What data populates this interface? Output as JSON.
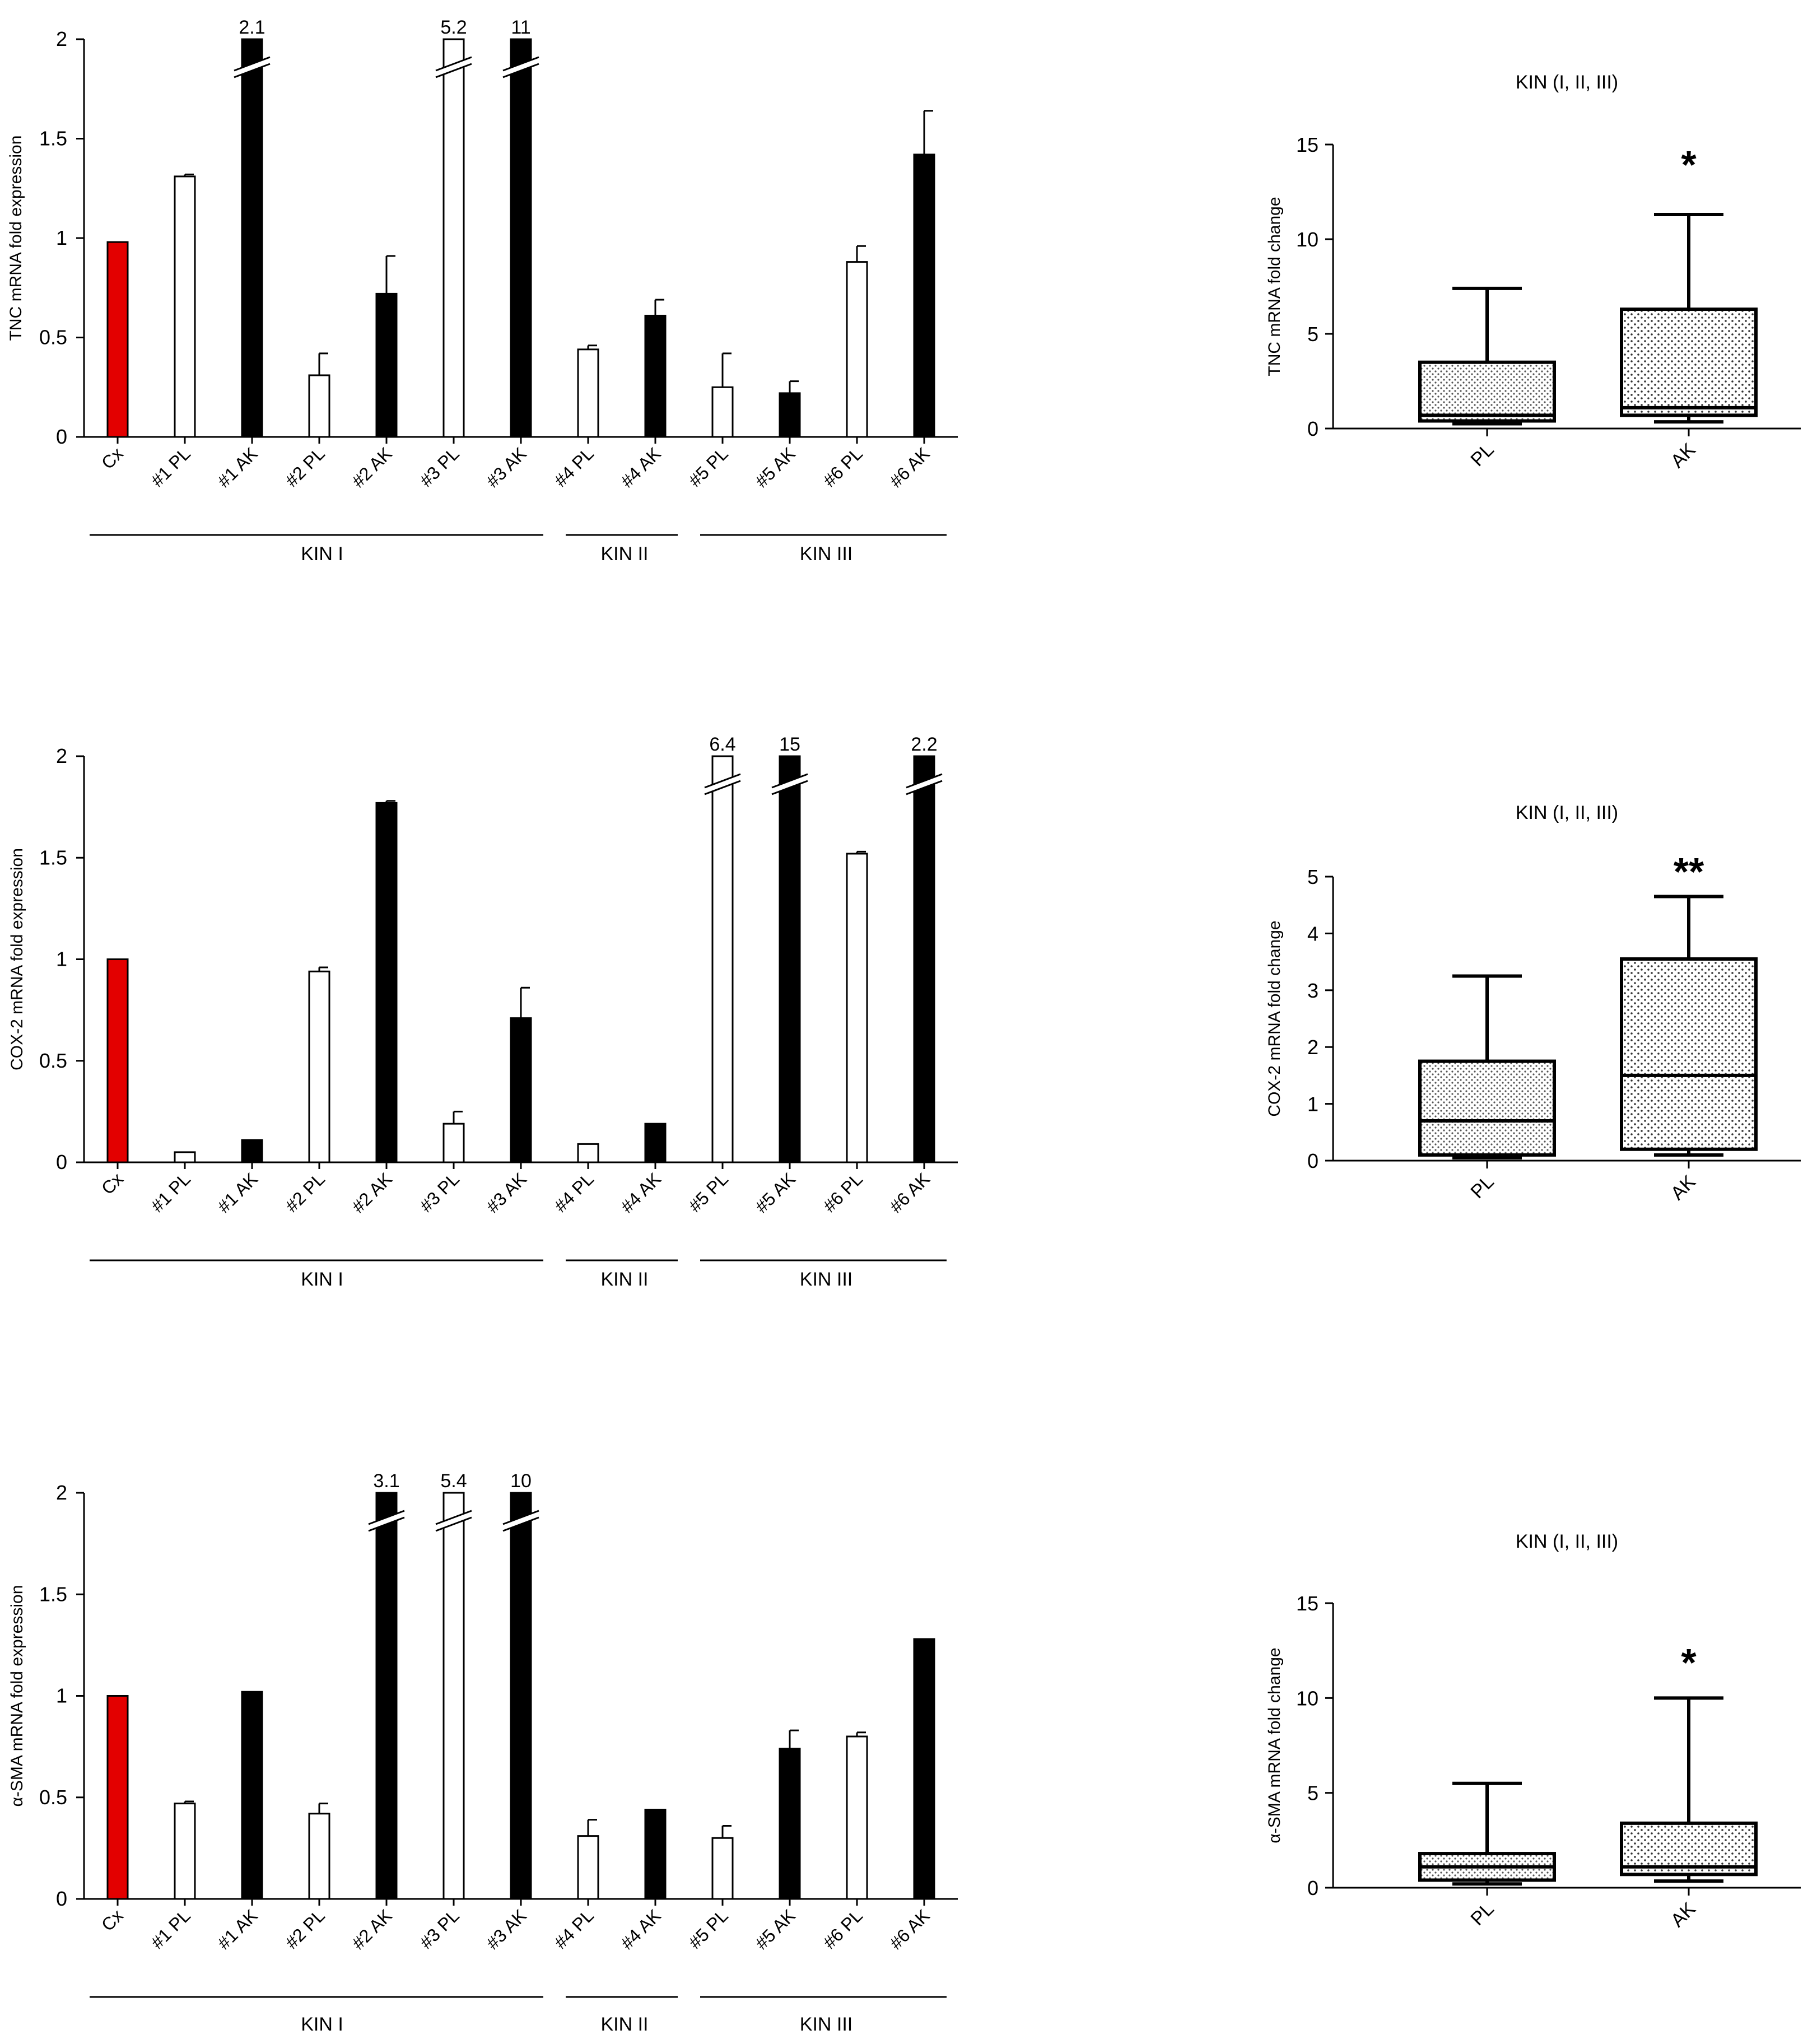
{
  "colors": {
    "control": "#e30000",
    "pl_fill": "#ffffff",
    "ak_fill": "#000000",
    "stroke": "#000000",
    "box_fill_pl": "#dcdcdc",
    "box_fill_ak": "#c8c8c8"
  },
  "chart_data": [
    {
      "type": "bar",
      "id": "tnc-bar",
      "ylabel": "TNC mRNA fold expression",
      "ylim": [
        0,
        2
      ],
      "yticks": [
        "0",
        "0.5",
        "1",
        "1.5",
        "2"
      ],
      "categories": [
        "Cx",
        "#1 PL",
        "#1 AK",
        "#2 PL",
        "#2 AK",
        "#3 PL",
        "#3 AK",
        "#4 PL",
        "#4 AK",
        "#5 PL",
        "#5 AK",
        "#6 PL",
        "#6 AK"
      ],
      "series": [
        {
          "name": "fold expression",
          "values": [
            0.98,
            1.31,
            2.0,
            0.31,
            0.72,
            2.0,
            2.0,
            0.44,
            0.61,
            0.25,
            0.22,
            0.88,
            1.42
          ]
        }
      ],
      "errors": [
        0,
        0.01,
        0,
        0.11,
        0.19,
        0,
        0,
        0.02,
        0.08,
        0.17,
        0.06,
        0.08,
        0.22
      ],
      "bar_kind": [
        "control",
        "PL",
        "AK",
        "PL",
        "AK",
        "PL",
        "AK",
        "PL",
        "AK",
        "PL",
        "AK",
        "PL",
        "AK"
      ],
      "breaks": [
        {
          "index": 2,
          "label": "2.1"
        },
        {
          "index": 5,
          "label": "5.2"
        },
        {
          "index": 6,
          "label": "11"
        }
      ],
      "groups": [
        {
          "label": "KIN I",
          "from": 0,
          "to": 6
        },
        {
          "label": "KIN II",
          "from": 7,
          "to": 8
        },
        {
          "label": "KIN III",
          "from": 9,
          "to": 12
        }
      ]
    },
    {
      "type": "bar",
      "id": "cox2-bar",
      "ylabel": "COX-2 mRNA fold expression",
      "ylim": [
        0,
        2
      ],
      "yticks": [
        "0",
        "0.5",
        "1",
        "1.5",
        "2"
      ],
      "categories": [
        "Cx",
        "#1 PL",
        "#1 AK",
        "#2 PL",
        "#2 AK",
        "#3 PL",
        "#3 AK",
        "#4 PL",
        "#4 AK",
        "#5 PL",
        "#5 AK",
        "#6 PL",
        "#6 AK"
      ],
      "series": [
        {
          "name": "fold expression",
          "values": [
            1.0,
            0.05,
            0.11,
            0.94,
            1.77,
            0.19,
            0.71,
            0.09,
            0.19,
            2.0,
            2.0,
            1.52,
            2.0
          ]
        }
      ],
      "errors": [
        0,
        0,
        0,
        0.02,
        0.01,
        0.06,
        0.15,
        0,
        0,
        0,
        0,
        0.01,
        0
      ],
      "bar_kind": [
        "control",
        "PL",
        "AK",
        "PL",
        "AK",
        "PL",
        "AK",
        "PL",
        "AK",
        "PL",
        "AK",
        "PL",
        "AK"
      ],
      "breaks": [
        {
          "index": 9,
          "label": "6.4"
        },
        {
          "index": 10,
          "label": "15"
        },
        {
          "index": 12,
          "label": "2.2"
        }
      ],
      "groups": [
        {
          "label": "KIN I",
          "from": 0,
          "to": 6
        },
        {
          "label": "KIN II",
          "from": 7,
          "to": 8
        },
        {
          "label": "KIN III",
          "from": 9,
          "to": 12
        }
      ]
    },
    {
      "type": "bar",
      "id": "asma-bar",
      "ylabel": "α-SMA mRNA fold expression",
      "ylim": [
        0,
        2
      ],
      "yticks": [
        "0",
        "0.5",
        "1",
        "1.5",
        "2"
      ],
      "categories": [
        "Cx",
        "#1 PL",
        "#1 AK",
        "#2 PL",
        "#2 AK",
        "#3 PL",
        "#3 AK",
        "#4 PL",
        "#4 AK",
        "#5 PL",
        "#5 AK",
        "#6 PL",
        "#6 AK"
      ],
      "series": [
        {
          "name": "fold expression",
          "values": [
            1.0,
            0.47,
            1.02,
            0.42,
            2.0,
            2.0,
            2.0,
            0.31,
            0.44,
            0.3,
            0.74,
            0.8,
            1.28
          ]
        }
      ],
      "errors": [
        0,
        0.01,
        0,
        0.05,
        0,
        0,
        0,
        0.08,
        0,
        0.06,
        0.09,
        0.02,
        0
      ],
      "bar_kind": [
        "control",
        "PL",
        "AK",
        "PL",
        "AK",
        "PL",
        "AK",
        "PL",
        "AK",
        "PL",
        "AK",
        "PL",
        "AK"
      ],
      "breaks": [
        {
          "index": 4,
          "label": "3.1"
        },
        {
          "index": 5,
          "label": "5.4"
        },
        {
          "index": 6,
          "label": "10"
        }
      ],
      "groups": [
        {
          "label": "KIN I",
          "from": 0,
          "to": 6
        },
        {
          "label": "KIN II",
          "from": 7,
          "to": 8
        },
        {
          "label": "KIN III",
          "from": 9,
          "to": 12
        }
      ]
    },
    {
      "type": "box",
      "id": "tnc-box",
      "title": "KIN (I, II, III)",
      "ylabel": "TNC mRNA fold change",
      "ylim": [
        0,
        15
      ],
      "yticks": [
        "0",
        "5",
        "10",
        "15"
      ],
      "categories": [
        "PL",
        "AK"
      ],
      "boxes": [
        {
          "name": "PL",
          "min": 0.25,
          "q1": 0.4,
          "median": 0.7,
          "q3": 3.5,
          "max": 7.4
        },
        {
          "name": "AK",
          "min": 0.35,
          "q1": 0.7,
          "median": 1.1,
          "q3": 6.3,
          "max": 11.3
        }
      ],
      "significance": "*"
    },
    {
      "type": "box",
      "id": "cox2-box",
      "title": "KIN (I, II, III)",
      "ylabel": "COX-2 mRNA fold change",
      "ylim": [
        0,
        5
      ],
      "yticks": [
        "0",
        "1",
        "2",
        "3",
        "4",
        "5"
      ],
      "categories": [
        "PL",
        "AK"
      ],
      "boxes": [
        {
          "name": "PL",
          "min": 0.05,
          "q1": 0.1,
          "median": 0.7,
          "q3": 1.75,
          "max": 3.25
        },
        {
          "name": "AK",
          "min": 0.1,
          "q1": 0.2,
          "median": 1.5,
          "q3": 3.55,
          "max": 4.65
        }
      ],
      "significance": "**"
    },
    {
      "type": "box",
      "id": "asma-box",
      "title": "KIN (I, II, III)",
      "ylabel": "α-SMA mRNA fold change",
      "ylim": [
        0,
        15
      ],
      "yticks": [
        "0",
        "5",
        "10",
        "15"
      ],
      "categories": [
        "PL",
        "AK"
      ],
      "boxes": [
        {
          "name": "PL",
          "min": 0.2,
          "q1": 0.4,
          "median": 1.1,
          "q3": 1.8,
          "max": 5.5
        },
        {
          "name": "AK",
          "min": 0.35,
          "q1": 0.7,
          "median": 1.1,
          "q3": 3.4,
          "max": 10.0
        }
      ],
      "significance": "*"
    }
  ]
}
